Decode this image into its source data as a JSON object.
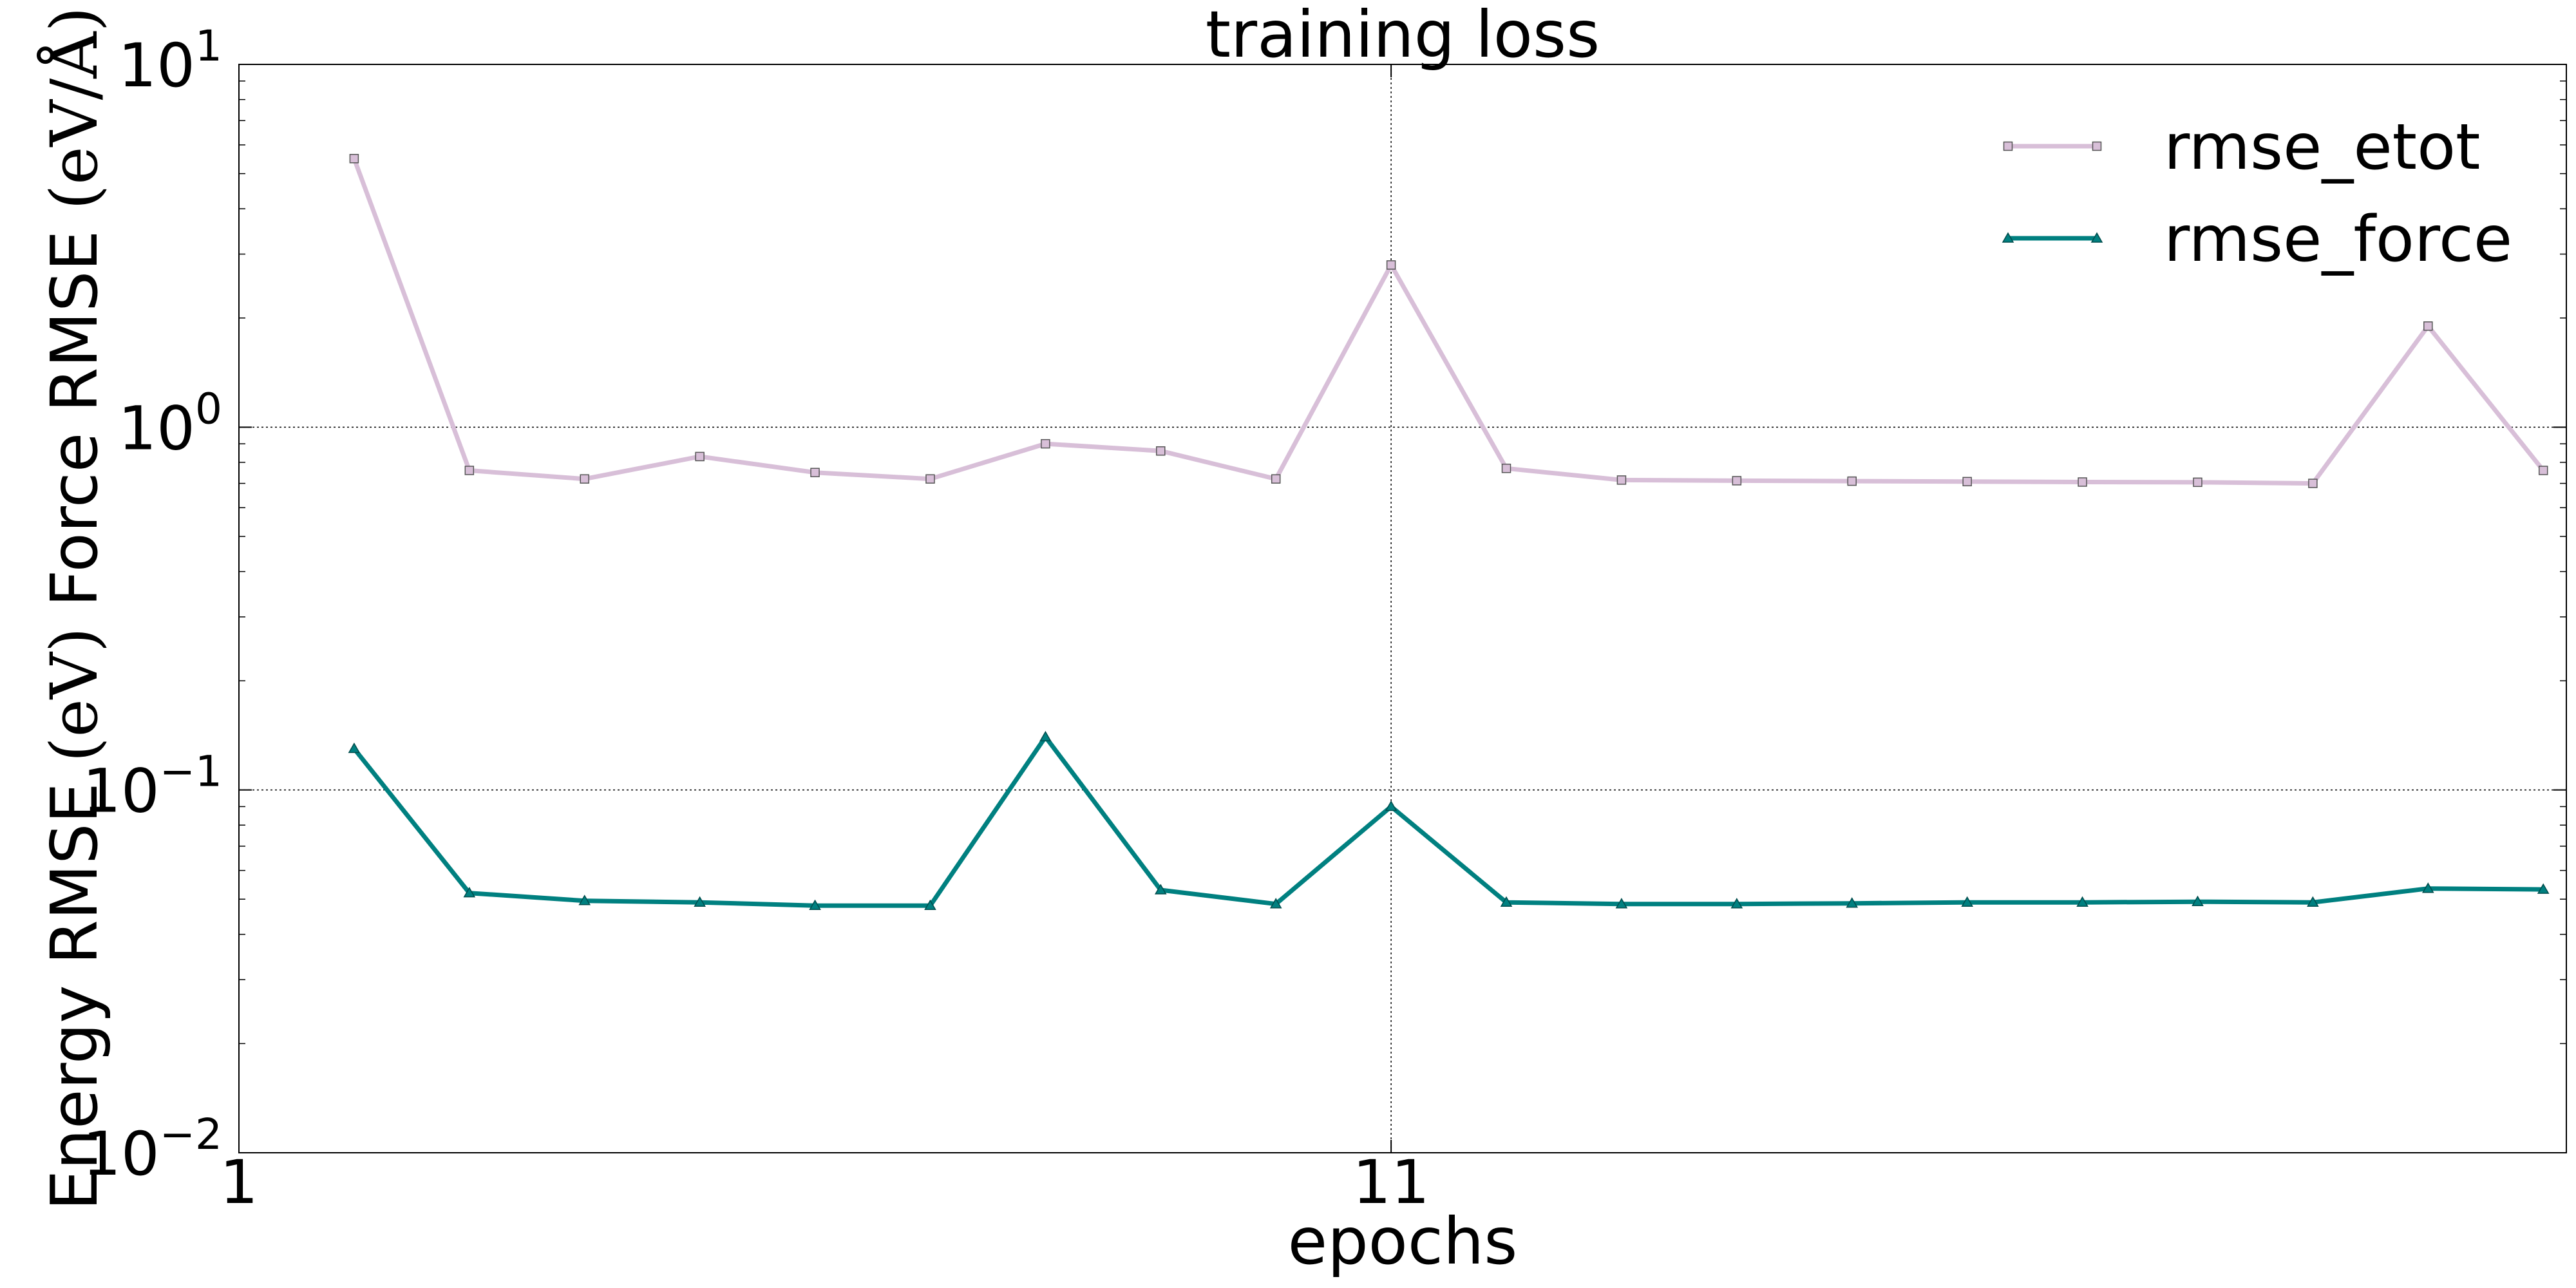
{
  "chart_data": {
    "type": "line",
    "title": "training loss",
    "xlabel": "epochs",
    "ylabel_parts": [
      "Energy RMSE ",
      "(eV)",
      "  Force RMSE ",
      "(eV/Å)"
    ],
    "yscale": "log",
    "ylim": [
      0.01,
      10
    ],
    "xlim": [
      1,
      21.2
    ],
    "x_ticks": [
      {
        "value": 1,
        "label": "1"
      },
      {
        "value": 11,
        "label": "11"
      }
    ],
    "y_ticks": [
      {
        "value": 0.01,
        "base": "10",
        "exp": "−2"
      },
      {
        "value": 0.1,
        "base": "10",
        "exp": "−1"
      },
      {
        "value": 1,
        "base": "10",
        "exp": "0"
      },
      {
        "value": 10,
        "base": "10",
        "exp": "1"
      }
    ],
    "grid": "dotted, at ticks",
    "legend_position": "top-right",
    "x": [
      2,
      3,
      4,
      5,
      6,
      7,
      8,
      9,
      10,
      11,
      12,
      13,
      14,
      15,
      16,
      17,
      18,
      19,
      20,
      21
    ],
    "series": [
      {
        "name": "rmse_etot",
        "color": "#d8bfd8",
        "marker": "square",
        "values": [
          5.5,
          0.76,
          0.72,
          0.83,
          0.75,
          0.72,
          0.9,
          0.86,
          0.72,
          2.8,
          0.77,
          0.715,
          0.712,
          0.71,
          0.708,
          0.706,
          0.705,
          0.7,
          1.9,
          0.76
        ]
      },
      {
        "name": "rmse_force",
        "color": "#008080",
        "marker": "triangle",
        "values": [
          0.13,
          0.052,
          0.0495,
          0.049,
          0.048,
          0.048,
          0.14,
          0.053,
          0.0485,
          0.09,
          0.049,
          0.0485,
          0.0485,
          0.0487,
          0.049,
          0.049,
          0.0492,
          0.049,
          0.0535,
          0.0532
        ]
      }
    ]
  }
}
